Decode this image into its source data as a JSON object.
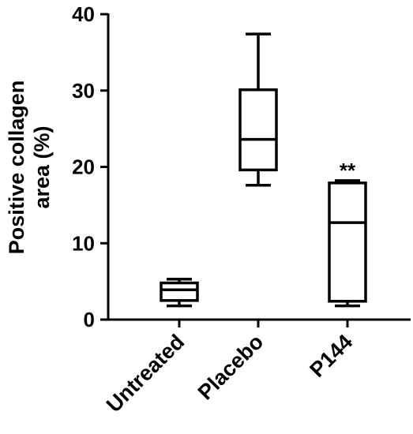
{
  "chart_data": {
    "type": "box",
    "categories": [
      "Untreated",
      "Placebo",
      "P144"
    ],
    "ylabel_lines": [
      "Positive collagen",
      "area  (%)"
    ],
    "ylim": [
      0,
      40
    ],
    "yticks": [
      0,
      10,
      20,
      30,
      40
    ],
    "boxes": [
      {
        "category": "Untreated",
        "min": 1.8,
        "q1": 2.5,
        "median": 3.9,
        "q3": 4.8,
        "max": 5.3,
        "annotation": ""
      },
      {
        "category": "Placebo",
        "min": 17.6,
        "q1": 19.6,
        "median": 23.6,
        "q3": 30.1,
        "max": 37.4,
        "annotation": ""
      },
      {
        "category": "P144",
        "min": 1.8,
        "q1": 2.4,
        "median": 12.7,
        "q3": 17.9,
        "max": 18.2,
        "annotation": "**"
      }
    ],
    "grid": false,
    "legend": "none"
  }
}
